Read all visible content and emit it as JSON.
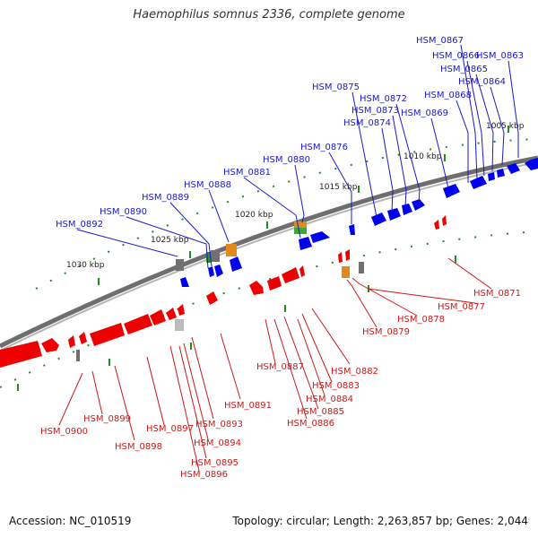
{
  "title": "Haemophilus somnus 2336, complete genome",
  "footer": {
    "accession": "Accession: NC_010519",
    "summary": "Topology: circular; Length: 2,263,857 bp; Genes: 2,044"
  },
  "colors": {
    "forward_gene": "#0000ee",
    "reverse_gene": "#ee0000",
    "forward_label": "#1a1acc",
    "reverse_label": "#cc1a1a",
    "backbone": "#808080",
    "tick": "#228b22"
  },
  "scale": {
    "ticks": [
      {
        "label": "1005 kbp"
      },
      {
        "label": "1010 kbp"
      },
      {
        "label": "1015 kbp"
      },
      {
        "label": "1020 kbp"
      },
      {
        "label": "1025 kbp"
      },
      {
        "label": "1030 kbp"
      }
    ]
  },
  "forward_genes": [
    {
      "label": "HSM_0863"
    },
    {
      "label": "HSM_0864"
    },
    {
      "label": "HSM_0865"
    },
    {
      "label": "HSM_0866"
    },
    {
      "label": "HSM_0867"
    },
    {
      "label": "HSM_0868"
    },
    {
      "label": "HSM_0869"
    },
    {
      "label": "HSM_0872"
    },
    {
      "label": "HSM_0873"
    },
    {
      "label": "HSM_0874"
    },
    {
      "label": "HSM_0875"
    },
    {
      "label": "HSM_0876"
    },
    {
      "label": "HSM_0880"
    },
    {
      "label": "HSM_0881"
    },
    {
      "label": "HSM_0888"
    },
    {
      "label": "HSM_0889"
    },
    {
      "label": "HSM_0890"
    },
    {
      "label": "HSM_0892"
    }
  ],
  "reverse_genes": [
    {
      "label": "HSM_0871"
    },
    {
      "label": "HSM_0877"
    },
    {
      "label": "HSM_0878"
    },
    {
      "label": "HSM_0879"
    },
    {
      "label": "HSM_0882"
    },
    {
      "label": "HSM_0883"
    },
    {
      "label": "HSM_0884"
    },
    {
      "label": "HSM_0885"
    },
    {
      "label": "HSM_0886"
    },
    {
      "label": "HSM_0887"
    },
    {
      "label": "HSM_0891"
    },
    {
      "label": "HSM_0893"
    },
    {
      "label": "HSM_0894"
    },
    {
      "label": "HSM_0895"
    },
    {
      "label": "HSM_0896"
    },
    {
      "label": "HSM_0897"
    },
    {
      "label": "HSM_0898"
    },
    {
      "label": "HSM_0899"
    },
    {
      "label": "HSM_0900"
    }
  ]
}
